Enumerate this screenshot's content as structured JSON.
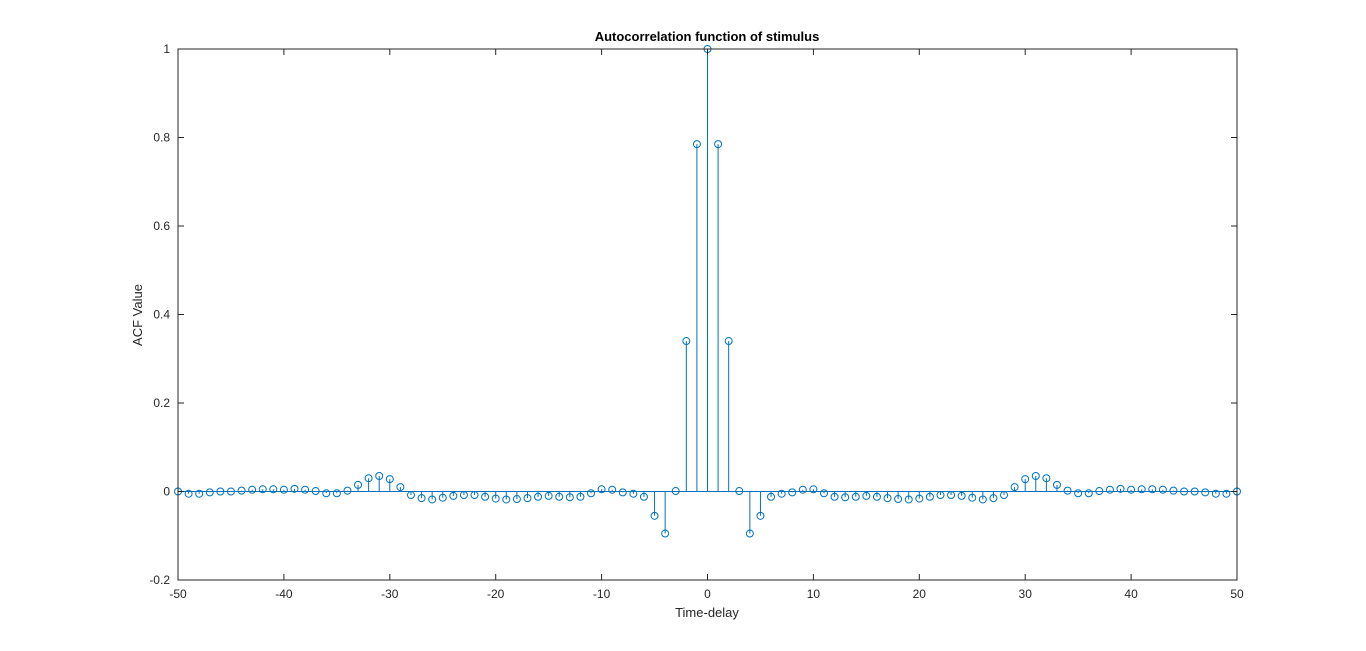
{
  "chart_data": {
    "type": "stem",
    "title": "Autocorrelation function of stimulus",
    "xlabel": "Time-delay",
    "ylabel": "ACF Value",
    "xlim": [
      -50,
      50
    ],
    "ylim": [
      -0.2,
      1
    ],
    "xticks": [
      -50,
      -40,
      -30,
      -20,
      -10,
      0,
      10,
      20,
      30,
      40,
      50
    ],
    "yticks": [
      -0.2,
      0,
      0.2,
      0.4,
      0.6,
      0.8,
      1
    ],
    "ytick_labels": [
      "-0.2",
      "0",
      "0.2",
      "0.4",
      "0.6",
      "0.8",
      "1"
    ],
    "grid": false,
    "line_color": "#0072bd",
    "axis_color": "#262626",
    "x": [
      -50,
      -49,
      -48,
      -47,
      -46,
      -45,
      -44,
      -43,
      -42,
      -41,
      -40,
      -39,
      -38,
      -37,
      -36,
      -35,
      -34,
      -33,
      -32,
      -31,
      -30,
      -29,
      -28,
      -27,
      -26,
      -25,
      -24,
      -23,
      -22,
      -21,
      -20,
      -19,
      -18,
      -17,
      -16,
      -15,
      -14,
      -13,
      -12,
      -11,
      -10,
      -9,
      -8,
      -7,
      -6,
      -5,
      -4,
      -3,
      -2,
      -1,
      0,
      1,
      2,
      3,
      4,
      5,
      6,
      7,
      8,
      9,
      10,
      11,
      12,
      13,
      14,
      15,
      16,
      17,
      18,
      19,
      20,
      21,
      22,
      23,
      24,
      25,
      26,
      27,
      28,
      29,
      30,
      31,
      32,
      33,
      34,
      35,
      36,
      37,
      38,
      39,
      40,
      41,
      42,
      43,
      44,
      45,
      46,
      47,
      48,
      49,
      50
    ],
    "values": [
      0,
      -0.005,
      -0.005,
      -0.002,
      0,
      0,
      0.002,
      0.004,
      0.005,
      0.005,
      0.004,
      0.006,
      0.004,
      0.001,
      -0.004,
      -0.004,
      0.002,
      0.015,
      0.03,
      0.035,
      0.028,
      0.01,
      -0.008,
      -0.015,
      -0.018,
      -0.014,
      -0.01,
      -0.008,
      -0.008,
      -0.012,
      -0.016,
      -0.018,
      -0.017,
      -0.015,
      -0.012,
      -0.01,
      -0.012,
      -0.013,
      -0.012,
      -0.004,
      0.005,
      0.004,
      -0.002,
      -0.005,
      -0.012,
      -0.055,
      -0.095,
      0.001,
      0.34,
      0.785,
      1,
      0.785,
      0.34,
      0.001,
      -0.095,
      -0.055,
      -0.012,
      -0.005,
      -0.002,
      0.004,
      0.005,
      -0.004,
      -0.012,
      -0.013,
      -0.012,
      -0.01,
      -0.012,
      -0.015,
      -0.017,
      -0.018,
      -0.016,
      -0.012,
      -0.008,
      -0.008,
      -0.01,
      -0.014,
      -0.018,
      -0.015,
      -0.008,
      0.01,
      0.028,
      0.035,
      0.03,
      0.015,
      0.002,
      -0.004,
      -0.004,
      0.001,
      0.004,
      0.006,
      0.004,
      0.005,
      0.005,
      0.004,
      0.002,
      0,
      0,
      -0.002,
      -0.005,
      -0.005,
      0
    ]
  }
}
